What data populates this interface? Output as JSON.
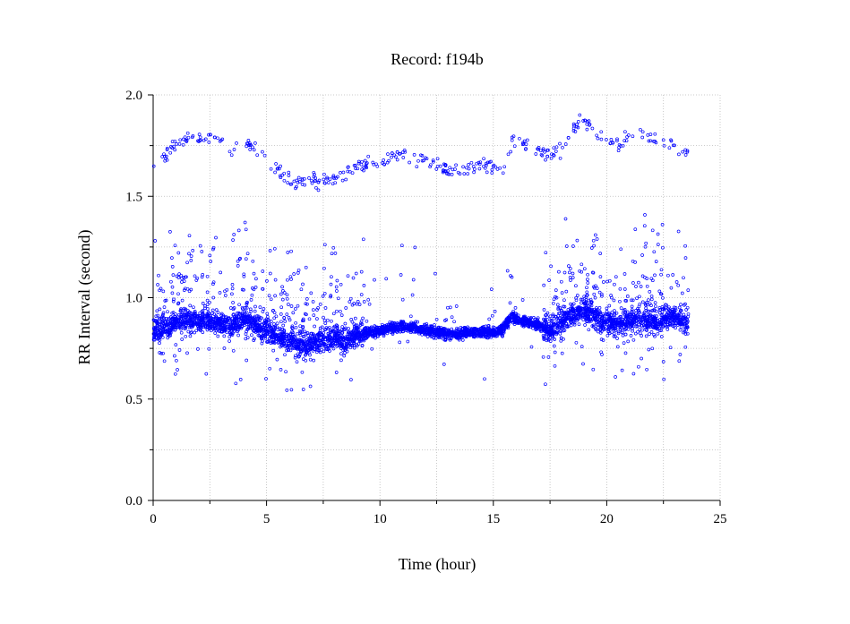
{
  "chart_data": {
    "type": "scatter",
    "title": "Record:  f194b",
    "xlabel": "Time (hour)",
    "ylabel": "RR Interval (second)",
    "xlim": [
      0,
      25
    ],
    "ylim": [
      0,
      2.0
    ],
    "x_ticks": [
      "0",
      "5",
      "10",
      "15",
      "20",
      "25"
    ],
    "y_ticks": [
      "0.0",
      "0.5",
      "1.0",
      "1.5",
      "2.0"
    ],
    "grid": true,
    "marker_color": "#0000ff",
    "series": [
      {
        "baseline": [
          [
            0.0,
            0.83
          ],
          [
            0.5,
            0.85
          ],
          [
            1.0,
            0.88
          ],
          [
            1.5,
            0.89
          ],
          [
            2.0,
            0.88
          ],
          [
            2.5,
            0.89
          ],
          [
            3.0,
            0.87
          ],
          [
            3.5,
            0.86
          ],
          [
            4.0,
            0.9
          ],
          [
            4.5,
            0.87
          ],
          [
            5.0,
            0.83
          ],
          [
            5.5,
            0.81
          ],
          [
            6.0,
            0.79
          ],
          [
            6.5,
            0.77
          ],
          [
            7.0,
            0.77
          ],
          [
            7.5,
            0.79
          ],
          [
            8.0,
            0.8
          ],
          [
            8.5,
            0.78
          ],
          [
            9.0,
            0.82
          ],
          [
            9.5,
            0.83
          ],
          [
            10.0,
            0.84
          ],
          [
            10.5,
            0.85
          ],
          [
            11.0,
            0.86
          ],
          [
            11.5,
            0.85
          ],
          [
            12.0,
            0.84
          ],
          [
            12.5,
            0.83
          ],
          [
            13.0,
            0.82
          ],
          [
            13.5,
            0.82
          ],
          [
            14.0,
            0.83
          ],
          [
            14.5,
            0.83
          ],
          [
            15.0,
            0.83
          ],
          [
            15.4,
            0.84
          ],
          [
            15.8,
            0.91
          ],
          [
            16.2,
            0.88
          ],
          [
            16.6,
            0.88
          ],
          [
            17.0,
            0.87
          ],
          [
            17.4,
            0.84
          ],
          [
            17.8,
            0.86
          ],
          [
            18.2,
            0.9
          ],
          [
            18.6,
            0.92
          ],
          [
            19.0,
            0.94
          ],
          [
            19.4,
            0.92
          ],
          [
            19.8,
            0.88
          ],
          [
            20.2,
            0.87
          ],
          [
            20.6,
            0.87
          ],
          [
            21.0,
            0.88
          ],
          [
            21.5,
            0.89
          ],
          [
            22.0,
            0.88
          ],
          [
            22.5,
            0.89
          ],
          [
            23.0,
            0.9
          ],
          [
            23.6,
            0.87
          ]
        ]
      },
      {
        "upper_band": [
          [
            0.0,
            1.63
          ],
          [
            0.5,
            1.7
          ],
          [
            1.0,
            1.76
          ],
          [
            1.5,
            1.78
          ],
          [
            2.0,
            1.8
          ],
          [
            2.5,
            1.79
          ],
          [
            3.0,
            1.77
          ],
          [
            3.5,
            1.74
          ],
          [
            4.0,
            1.76
          ],
          [
            4.5,
            1.74
          ],
          [
            5.0,
            1.67
          ],
          [
            5.5,
            1.62
          ],
          [
            6.0,
            1.58
          ],
          [
            6.5,
            1.57
          ],
          [
            7.0,
            1.57
          ],
          [
            7.5,
            1.57
          ],
          [
            8.0,
            1.58
          ],
          [
            8.5,
            1.62
          ],
          [
            9.0,
            1.64
          ],
          [
            9.5,
            1.66
          ],
          [
            10.0,
            1.67
          ],
          [
            10.5,
            1.7
          ],
          [
            11.0,
            1.7
          ],
          [
            11.5,
            1.7
          ],
          [
            12.0,
            1.67
          ],
          [
            12.5,
            1.65
          ],
          [
            13.0,
            1.63
          ],
          [
            13.5,
            1.63
          ],
          [
            14.0,
            1.64
          ],
          [
            14.5,
            1.65
          ],
          [
            15.0,
            1.65
          ],
          [
            15.4,
            1.61
          ],
          [
            15.8,
            1.77
          ],
          [
            16.5,
            1.75
          ],
          [
            17.0,
            1.72
          ],
          [
            17.5,
            1.7
          ],
          [
            18.0,
            1.74
          ],
          [
            18.5,
            1.83
          ],
          [
            19.0,
            1.87
          ],
          [
            19.5,
            1.82
          ],
          [
            20.0,
            1.78
          ],
          [
            20.5,
            1.75
          ],
          [
            21.0,
            1.79
          ],
          [
            21.5,
            1.8
          ],
          [
            22.0,
            1.78
          ],
          [
            22.5,
            1.78
          ],
          [
            23.0,
            1.74
          ],
          [
            23.6,
            1.7
          ]
        ]
      }
    ]
  }
}
